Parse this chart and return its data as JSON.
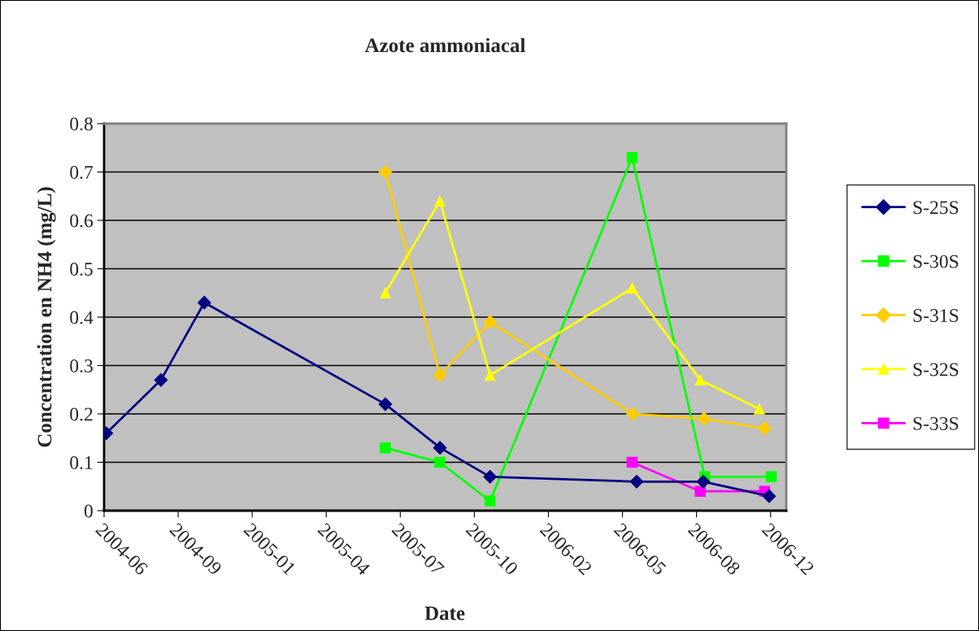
{
  "chart_data": {
    "type": "line",
    "title": "Azote ammoniacal",
    "xlabel": "Date",
    "ylabel": "Concentration en NH4 (mg/L)",
    "series": [
      {
        "name": "S-25S",
        "color": "#000080",
        "marker": "diamond",
        "x": [
          "2004-06-26",
          "2004-09-07",
          "2004-11-04",
          "2005-07-04",
          "2005-09-15",
          "2005-11-21",
          "2006-06-05",
          "2006-09-02",
          "2006-11-29"
        ],
        "values": [
          0.16,
          0.27,
          0.43,
          0.22,
          0.13,
          0.07,
          0.06,
          0.06,
          0.03
        ]
      },
      {
        "name": "S-30S",
        "color": "#00ff00",
        "marker": "square",
        "x": [
          "2005-07-04",
          "2005-09-15",
          "2005-11-21",
          "2006-05-30",
          "2006-09-04",
          "2006-12-02"
        ],
        "values": [
          0.13,
          0.1,
          0.02,
          0.73,
          0.07,
          0.07
        ]
      },
      {
        "name": "S-31S",
        "color": "#ffcc00",
        "marker": "diamond",
        "x": [
          "2005-07-04",
          "2005-09-15",
          "2005-11-21",
          "2006-05-31",
          "2006-09-03",
          "2006-11-23"
        ],
        "values": [
          0.7,
          0.28,
          0.39,
          0.2,
          0.19,
          0.17
        ]
      },
      {
        "name": "S-32S",
        "color": "#ffff00",
        "marker": "triangle",
        "x": [
          "2005-07-04",
          "2005-09-15",
          "2005-11-21",
          "2006-05-30",
          "2006-08-29",
          "2006-11-16"
        ],
        "values": [
          0.45,
          0.64,
          0.28,
          0.46,
          0.27,
          0.21
        ]
      },
      {
        "name": "S-33S",
        "color": "#ff00ff",
        "marker": "square",
        "x": [
          "2006-05-30",
          "2006-08-29",
          "2006-11-23"
        ],
        "values": [
          0.1,
          0.04,
          0.04
        ]
      }
    ],
    "xlim": [
      "2004-06-23",
      "2006-12-22"
    ],
    "xticks": [
      {
        "value": "2004-06-23",
        "label": "2004-06"
      },
      {
        "value": "2004-09-30",
        "label": "2004-09"
      },
      {
        "value": "2005-01-07",
        "label": "2005-01"
      },
      {
        "value": "2005-04-16",
        "label": "2005-04"
      },
      {
        "value": "2005-07-24",
        "label": "2005-07"
      },
      {
        "value": "2005-10-31",
        "label": "2005-10"
      },
      {
        "value": "2006-02-07",
        "label": "2006-02"
      },
      {
        "value": "2006-05-17",
        "label": "2006-05"
      },
      {
        "value": "2006-08-24",
        "label": "2006-08"
      },
      {
        "value": "2006-12-01",
        "label": "2006-12"
      }
    ],
    "ylim": [
      0,
      0.8
    ],
    "yticks": [
      0,
      0.1,
      0.2,
      0.3,
      0.4,
      0.5,
      0.6,
      0.7,
      0.8
    ],
    "grid": "y",
    "legend": "right",
    "line_style": "solid"
  }
}
